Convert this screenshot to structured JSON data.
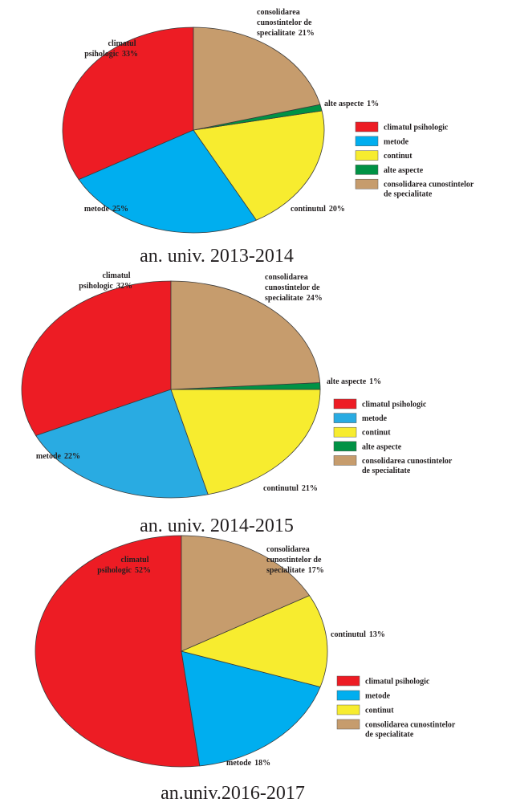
{
  "chart_data": [
    {
      "type": "pie",
      "caption": "an. univ. 2013-2014",
      "categories": [
        "climatul psihologic",
        "metode",
        "continut",
        "alte aspecte",
        "consolidarea cunostintelor de specialitate"
      ],
      "slice_labels": [
        "climatul psihologic",
        "metode",
        "continutul",
        "alte aspecte",
        "consolidarea cunostintelor de specialitate"
      ],
      "values": [
        33,
        25,
        20,
        1,
        21
      ],
      "value_labels": [
        "33%",
        "25%",
        "20%",
        "1%",
        "21%"
      ],
      "colors": [
        "#ed1c24",
        "#00aeef",
        "#f7ec2f",
        "#009245",
        "#c69c6d"
      ]
    },
    {
      "type": "pie",
      "caption": "an. univ. 2014-2015",
      "categories": [
        "climatul psihologic",
        "metode",
        "continut",
        "alte aspecte",
        "consolidarea cunostintelor de specialitate"
      ],
      "slice_labels": [
        "climatul psihologic",
        "metode",
        "continutul",
        "alte aspecte",
        "consolidarea cunostintelor de specialitate"
      ],
      "values": [
        32,
        22,
        21,
        1,
        24
      ],
      "value_labels": [
        "32%",
        "22%",
        "21%",
        "1%",
        "24%"
      ],
      "colors": [
        "#ed1c24",
        "#29abe2",
        "#f7ec2f",
        "#009245",
        "#c69c6d"
      ]
    },
    {
      "type": "pie",
      "caption": "an.univ.2016-2017",
      "categories": [
        "climatul psihologic",
        "metode",
        "continut",
        "consolidarea cunostintelor de specialitate"
      ],
      "slice_labels": [
        "climatul psihologic",
        "metode",
        "continutul",
        "consolidarea cunostintelor de specialitate"
      ],
      "values": [
        52,
        18,
        13,
        17
      ],
      "value_labels": [
        "52%",
        "18%",
        "13%",
        "17%"
      ],
      "colors": [
        "#ed1c24",
        "#00aeef",
        "#f7ec2f",
        "#c69c6d"
      ]
    }
  ]
}
